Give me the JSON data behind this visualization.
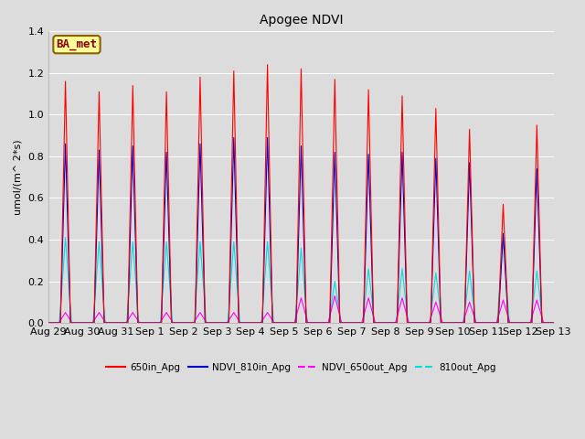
{
  "title": "Apogee NDVI",
  "ylabel": "umol/(m^ 2*s)",
  "ylim": [
    0,
    1.4
  ],
  "figsize": [
    6.4,
    4.8
  ],
  "dpi": 100,
  "bg_color": "#dcdcdc",
  "plot_bg_color": "#dcdcdc",
  "annotation_text": "BA_met",
  "annotation_bg": "#ffff99",
  "annotation_border": "#8b6000",
  "annotation_text_color": "#8b0000",
  "series": {
    "650in_Apg": {
      "color": "#ff0000",
      "linewidth": 0.8,
      "zorder": 4
    },
    "NDVI_810in_Apg": {
      "color": "#0000cc",
      "linewidth": 0.8,
      "zorder": 3
    },
    "NDVI_650out_Apg": {
      "color": "#ff00ff",
      "linewidth": 0.8,
      "zorder": 2
    },
    "810out_Apg": {
      "color": "#00dddd",
      "linewidth": 0.8,
      "zorder": 1
    }
  },
  "x_tick_labels": [
    "Aug 29",
    "Aug 30",
    "Aug 31",
    "Sep 1",
    "Sep 2",
    "Sep 3",
    "Sep 4",
    "Sep 5",
    "Sep 6",
    "Sep 7",
    "Sep 8",
    "Sep 9",
    "Sep 10",
    "Sep 11",
    "Sep 12",
    "Sep 13"
  ],
  "num_peaks": 15,
  "peaks_650in": [
    1.16,
    1.11,
    1.14,
    1.11,
    1.18,
    1.21,
    1.24,
    1.22,
    1.17,
    1.12,
    1.09,
    1.03,
    0.93,
    0.57,
    0.95
  ],
  "peaks_810in": [
    0.86,
    0.83,
    0.85,
    0.82,
    0.86,
    0.89,
    0.89,
    0.85,
    0.82,
    0.81,
    0.82,
    0.79,
    0.77,
    0.43,
    0.74
  ],
  "peaks_650out": [
    0.05,
    0.05,
    0.05,
    0.05,
    0.05,
    0.05,
    0.05,
    0.12,
    0.13,
    0.12,
    0.12,
    0.1,
    0.1,
    0.11,
    0.11
  ],
  "peaks_810out": [
    0.41,
    0.39,
    0.39,
    0.39,
    0.39,
    0.39,
    0.39,
    0.36,
    0.2,
    0.26,
    0.26,
    0.24,
    0.25,
    0.41,
    0.25
  ],
  "grid_color": "#ffffff",
  "grid_linewidth": 0.7,
  "yticks": [
    0.0,
    0.2,
    0.4,
    0.6,
    0.8,
    1.0,
    1.2,
    1.4
  ],
  "tick_fontsize": 8,
  "ylabel_fontsize": 8,
  "title_fontsize": 10,
  "legend_fontsize": 7.5
}
